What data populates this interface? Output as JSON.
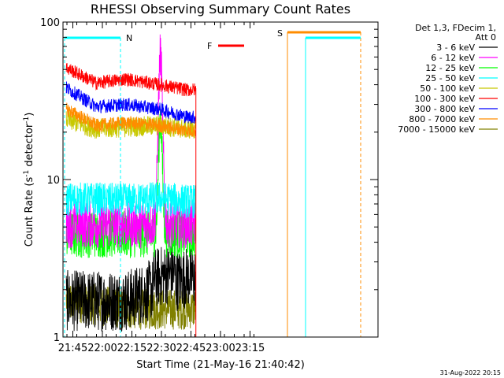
{
  "chart_data": {
    "type": "line",
    "title": "RHESSI Observing Summary Count Rates",
    "xlabel": "Start Time (21-May-16 21:40:42)",
    "ylabel_main": "Count Rate (s",
    "ylabel_sup": "-1",
    "ylabel_tail": " detector",
    "ylabel_sup2": "-1",
    "ylabel_close": ")",
    "yscale": "log",
    "ylim": [
      1,
      100
    ],
    "xlim_minutes": [
      21.6667,
      24.3333
    ],
    "x_ticks": [
      {
        "label": "21:45",
        "minute": 0.0
      },
      {
        "label": "22:00",
        "minute": 15.0
      },
      {
        "label": "22:15",
        "minute": 30.0
      },
      {
        "label": "22:30",
        "minute": 45.0
      },
      {
        "label": "22:45",
        "minute": 60.0
      },
      {
        "label": "23:00",
        "minute": 75.0
      },
      {
        "label": "23:15",
        "minute": 90.0
      }
    ],
    "y_ticks": [
      {
        "label": "1",
        "value": 1
      },
      {
        "label": "10",
        "value": 10
      },
      {
        "label": "100",
        "value": 100
      }
    ],
    "legend_header": [
      "Det 1,3, FDecim 1,",
      "Att 0"
    ],
    "legend_position": "right",
    "series": [
      {
        "name": "3 - 6 keV",
        "color": "#000000",
        "base": [
          1.7,
          1.7,
          1.7,
          2.1,
          2.4,
          2.3,
          2.0
        ],
        "spread": 0.45
      },
      {
        "name": "6 - 12 keV",
        "color": "#ff00ff",
        "base": [
          5.2,
          5.2,
          5.2,
          62.0,
          5.5,
          5.2,
          5.0
        ],
        "spread": 0.35
      },
      {
        "name": "12 - 25 keV",
        "color": "#00ff00",
        "base": [
          4.5,
          4.5,
          4.5,
          25.0,
          4.6,
          4.4,
          4.2
        ],
        "spread": 0.35
      },
      {
        "name": "25 - 50 keV",
        "color": "#00ffff",
        "base": [
          7.5,
          7.5,
          7.4,
          7.6,
          7.3,
          7.2,
          7.0
        ],
        "spread": 0.25
      },
      {
        "name": "50 - 100 keV",
        "color": "#c8c800",
        "base": [
          24.0,
          21.0,
          21.5,
          22.0,
          21.0,
          20.5,
          20.0
        ],
        "spread": 0.15
      },
      {
        "name": "100 - 300 keV",
        "color": "#ff0000",
        "base": [
          51.0,
          41.0,
          43.5,
          40.0,
          37.0,
          38.0,
          37.0
        ],
        "spread": 0.1
      },
      {
        "name": "300 - 800 keV",
        "color": "#0000ff",
        "base": [
          38.0,
          29.0,
          30.0,
          28.0,
          25.0,
          24.5,
          24.0
        ],
        "spread": 0.1
      },
      {
        "name": "800 - 7000 keV",
        "color": "#ff8c00",
        "base": [
          28.0,
          22.0,
          23.0,
          22.0,
          20.5,
          20.0,
          19.5
        ],
        "spread": 0.1
      },
      {
        "name": "7000 - 15000 keV",
        "color": "#808000",
        "base": [
          1.7,
          1.6,
          1.5,
          1.5,
          1.5,
          1.6,
          1.6
        ],
        "spread": 0.3
      }
    ],
    "flag_bars": [
      {
        "label": "N",
        "color": "#00ffff"
      },
      {
        "label": "F",
        "color": "#ff0000"
      },
      {
        "label": "S",
        "color": "#ff8c00"
      }
    ],
    "timestamp": "31-Aug-2022 20:15"
  }
}
